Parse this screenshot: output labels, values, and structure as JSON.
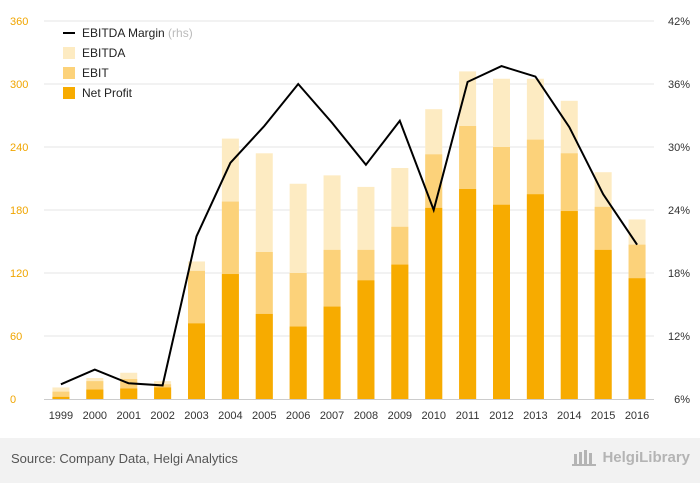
{
  "chart_data": {
    "type": "bar",
    "title": "",
    "categories": [
      "1999",
      "2000",
      "2001",
      "2002",
      "2003",
      "2004",
      "2005",
      "2006",
      "2007",
      "2008",
      "2009",
      "2010",
      "2011",
      "2012",
      "2013",
      "2014",
      "2015",
      "2016"
    ],
    "series": [
      {
        "name": "EBITDA",
        "axis": "left",
        "color": "#fdebc2",
        "values": [
          11,
          20,
          25,
          17,
          131,
          248,
          234,
          205,
          213,
          202,
          220,
          276,
          312,
          305,
          305,
          284,
          216,
          171
        ]
      },
      {
        "name": "EBIT",
        "axis": "left",
        "color": "#fcd27a",
        "values": [
          7,
          17,
          19,
          14,
          122,
          188,
          140,
          120,
          142,
          142,
          164,
          233,
          260,
          240,
          247,
          234,
          183,
          147
        ]
      },
      {
        "name": "Net Profit",
        "axis": "left",
        "color": "#f7ab00",
        "values": [
          2,
          9,
          10,
          11,
          72,
          119,
          81,
          69,
          88,
          113,
          128,
          182,
          200,
          185,
          195,
          179,
          142,
          115
        ]
      },
      {
        "name": "EBITDA Margin",
        "axis": "right",
        "type": "line",
        "color": "#000000",
        "suffix": "(rhs)",
        "values": [
          7.4,
          8.8,
          7.5,
          7.3,
          21.5,
          28.5,
          32.0,
          36.0,
          32.3,
          28.3,
          32.5,
          24.0,
          36.2,
          37.7,
          36.7,
          31.9,
          25.5,
          20.7
        ]
      }
    ],
    "y_left": {
      "lim": [
        0,
        360
      ],
      "ticks": [
        "0",
        "60",
        "120",
        "180",
        "240",
        "300",
        "360"
      ]
    },
    "y_right": {
      "lim": [
        6,
        42
      ],
      "ticks": [
        "6%",
        "12%",
        "18%",
        "24%",
        "30%",
        "36%",
        "42%"
      ]
    },
    "legend": {
      "position": "top-left",
      "order": [
        3,
        0,
        1,
        2
      ]
    },
    "grid": true
  },
  "footer": {
    "source": "Source: Company Data, Helgi Analytics",
    "brand": "HelgiLibrary"
  }
}
